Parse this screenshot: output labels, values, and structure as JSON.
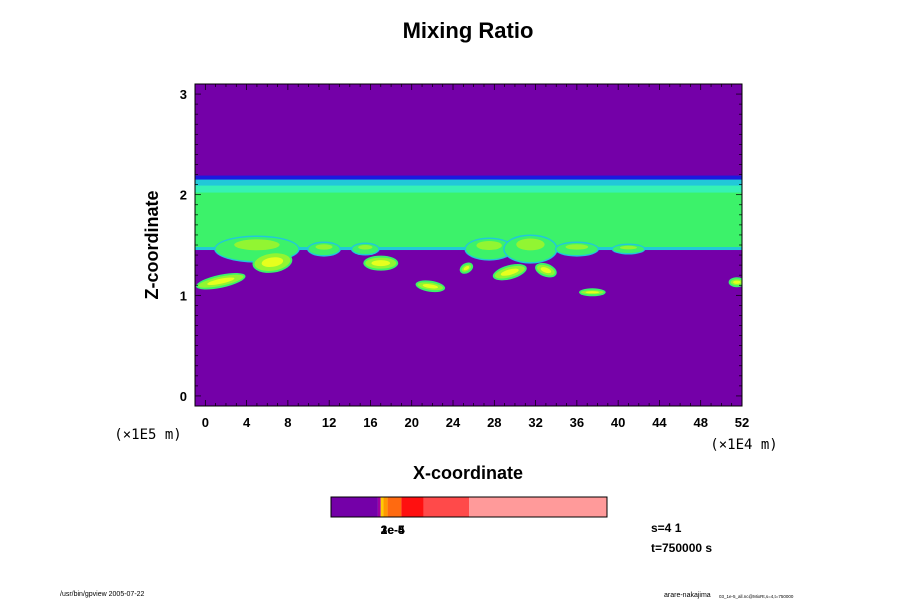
{
  "chart_data": {
    "type": "heatmap",
    "title": "Mixing Ratio",
    "xlabel": "X-coordinate",
    "ylabel": "Z-coordinate",
    "x_unit": "(×1E4 m)",
    "y_unit": "(×1E5 m)",
    "xlim": [
      -1,
      52
    ],
    "ylim": [
      -0.1,
      3.1
    ],
    "x_ticks": [
      0,
      4,
      8,
      12,
      16,
      20,
      24,
      28,
      32,
      36,
      40,
      44,
      48,
      52
    ],
    "x_tick_labels": [
      "0",
      "4",
      "8",
      "12",
      "16",
      "20",
      "24",
      "28",
      "32",
      "36",
      "40",
      "44",
      "48",
      "52"
    ],
    "y_ticks": [
      0,
      1,
      2,
      3
    ],
    "y_tick_labels": [
      "0",
      "1",
      "2",
      "3"
    ],
    "colors": {
      "background": "#7400a8",
      "top_edge": "#1a1ae0",
      "cyan": "#22c8d8",
      "aqua": "#36f2b4",
      "green": "#3cf26a",
      "lime": "#92f532",
      "yellow": "#e6ff1e"
    },
    "features": {
      "main_band": {
        "z_bottom": 1.46,
        "z_top": 2.16
      },
      "patches": [
        {
          "x": 1.5,
          "z": 1.14,
          "w": 4.5,
          "h": 0.09,
          "rot": -12
        },
        {
          "x": 6.5,
          "z": 1.33,
          "w": 3.5,
          "h": 0.17,
          "rot": -8
        },
        {
          "x": 17.0,
          "z": 1.32,
          "w": 3.0,
          "h": 0.11,
          "rot": 0
        },
        {
          "x": 21.8,
          "z": 1.09,
          "w": 2.5,
          "h": 0.07,
          "rot": 8
        },
        {
          "x": 25.3,
          "z": 1.27,
          "w": 1.0,
          "h": 0.06,
          "rot": -30
        },
        {
          "x": 29.5,
          "z": 1.23,
          "w": 3.0,
          "h": 0.1,
          "rot": -15
        },
        {
          "x": 33.0,
          "z": 1.25,
          "w": 1.8,
          "h": 0.09,
          "rot": 20
        },
        {
          "x": 37.5,
          "z": 1.03,
          "w": 2.2,
          "h": 0.04,
          "rot": 0
        },
        {
          "x": 51.5,
          "z": 1.13,
          "w": 1.2,
          "h": 0.06,
          "rot": 0
        }
      ],
      "bumps": [
        {
          "x": 5.0,
          "w": 8.0,
          "h": 0.12
        },
        {
          "x": 11.5,
          "w": 3.0,
          "h": 0.06
        },
        {
          "x": 15.5,
          "w": 2.5,
          "h": 0.05
        },
        {
          "x": 27.5,
          "w": 4.5,
          "h": 0.1
        },
        {
          "x": 31.5,
          "w": 5.0,
          "h": 0.13
        },
        {
          "x": 36.0,
          "w": 4.0,
          "h": 0.06
        },
        {
          "x": 41.0,
          "w": 3.0,
          "h": 0.04
        }
      ]
    },
    "colorbar": {
      "segments": [
        {
          "value": 0.17,
          "color": "#7400a8"
        },
        {
          "value": 0.01,
          "color": "#a000a0"
        },
        {
          "value": 0.01,
          "color": "#ffcc00"
        },
        {
          "value": 0.015,
          "color": "#ff9900"
        },
        {
          "value": 0.05,
          "color": "#ff6a10"
        },
        {
          "value": 0.08,
          "color": "#ff1010"
        },
        {
          "value": 0.165,
          "color": "#ff4a4a"
        },
        {
          "value": 0.5,
          "color": "#ff9a9a"
        }
      ],
      "labels": [
        "1e-5",
        "2e-5",
        "3e-4"
      ]
    },
    "info": {
      "section": "s=4 1",
      "time": "t=750000 s"
    },
    "footer_left": "/usr/bin/gpview 2005-07-22",
    "footer_right_main": "arare-nakajima",
    "footer_right_sub": "03_1e-5_all.nc@MixRt,s=4,t=750000"
  }
}
